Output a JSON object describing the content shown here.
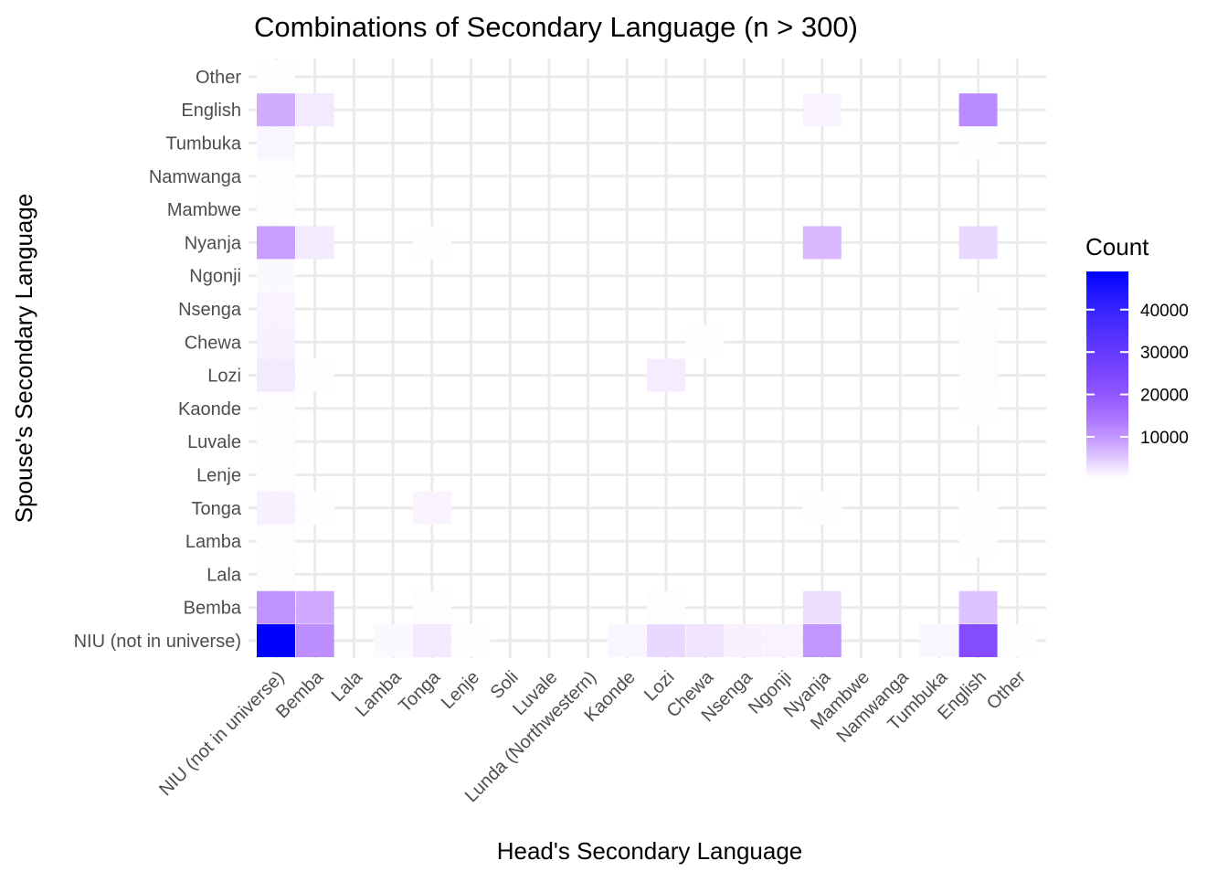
{
  "chart_data": {
    "type": "heatmap",
    "title": "Combinations of Secondary Language (n > 300)",
    "xlabel": "Head's Secondary Language",
    "ylabel": "Spouse's Secondary Language",
    "x_categories": [
      "NIU (not in universe)",
      "Bemba",
      "Lala",
      "Lamba",
      "Tonga",
      "Lenje",
      "Soli",
      "Luvale",
      "Lunda (Northwestern)",
      "Kaonde",
      "Lozi",
      "Chewa",
      "Nsenga",
      "Ngonji",
      "Nyanja",
      "Mambwe",
      "Namwanga",
      "Tumbuka",
      "English",
      "Other"
    ],
    "y_categories": [
      "NIU (not in universe)",
      "Bemba",
      "Lala",
      "Lamba",
      "Tonga",
      "Lenje",
      "Luvale",
      "Kaonde",
      "Lozi",
      "Chewa",
      "Nsenga",
      "Ngonji",
      "Nyanja",
      "Mambwe",
      "Namwanga",
      "Tumbuka",
      "English",
      "Other"
    ],
    "cells": [
      {
        "x": "NIU (not in universe)",
        "y": "NIU (not in universe)",
        "value": 49000
      },
      {
        "x": "Bemba",
        "y": "NIU (not in universe)",
        "value": 11000
      },
      {
        "x": "Lamba",
        "y": "NIU (not in universe)",
        "value": 800
      },
      {
        "x": "Tonga",
        "y": "NIU (not in universe)",
        "value": 2000
      },
      {
        "x": "Lenje",
        "y": "NIU (not in universe)",
        "value": 400
      },
      {
        "x": "Kaonde",
        "y": "NIU (not in universe)",
        "value": 1000
      },
      {
        "x": "Lozi",
        "y": "NIU (not in universe)",
        "value": 3500
      },
      {
        "x": "Chewa",
        "y": "NIU (not in universe)",
        "value": 2500
      },
      {
        "x": "Nsenga",
        "y": "NIU (not in universe)",
        "value": 1500
      },
      {
        "x": "Ngonji",
        "y": "NIU (not in universe)",
        "value": 1200
      },
      {
        "x": "Nyanja",
        "y": "NIU (not in universe)",
        "value": 10000
      },
      {
        "x": "Tumbuka",
        "y": "NIU (not in universe)",
        "value": 1000
      },
      {
        "x": "English",
        "y": "NIU (not in universe)",
        "value": 23000
      },
      {
        "x": "Other",
        "y": "NIU (not in universe)",
        "value": 400
      },
      {
        "x": "NIU (not in universe)",
        "y": "Bemba",
        "value": 10500
      },
      {
        "x": "Bemba",
        "y": "Bemba",
        "value": 8000
      },
      {
        "x": "Tonga",
        "y": "Bemba",
        "value": 500
      },
      {
        "x": "Lozi",
        "y": "Bemba",
        "value": 500
      },
      {
        "x": "Nyanja",
        "y": "Bemba",
        "value": 3000
      },
      {
        "x": "English",
        "y": "Bemba",
        "value": 5500
      },
      {
        "x": "NIU (not in universe)",
        "y": "Lala",
        "value": 500
      },
      {
        "x": "NIU (not in universe)",
        "y": "Lamba",
        "value": 500
      },
      {
        "x": "English",
        "y": "Lamba",
        "value": 400
      },
      {
        "x": "NIU (not in universe)",
        "y": "Tonga",
        "value": 1500
      },
      {
        "x": "Bemba",
        "y": "Tonga",
        "value": 400
      },
      {
        "x": "Tonga",
        "y": "Tonga",
        "value": 1200
      },
      {
        "x": "Nyanja",
        "y": "Tonga",
        "value": 400
      },
      {
        "x": "English",
        "y": "Tonga",
        "value": 400
      },
      {
        "x": "NIU (not in universe)",
        "y": "Lenje",
        "value": 500
      },
      {
        "x": "NIU (not in universe)",
        "y": "Luvale",
        "value": 500
      },
      {
        "x": "NIU (not in universe)",
        "y": "Kaonde",
        "value": 500
      },
      {
        "x": "English",
        "y": "Kaonde",
        "value": 400
      },
      {
        "x": "NIU (not in universe)",
        "y": "Lozi",
        "value": 2000
      },
      {
        "x": "Bemba",
        "y": "Lozi",
        "value": 400
      },
      {
        "x": "Lozi",
        "y": "Lozi",
        "value": 1800
      },
      {
        "x": "English",
        "y": "Lozi",
        "value": 500
      },
      {
        "x": "NIU (not in universe)",
        "y": "Chewa",
        "value": 1500
      },
      {
        "x": "Chewa",
        "y": "Chewa",
        "value": 500
      },
      {
        "x": "English",
        "y": "Chewa",
        "value": 500
      },
      {
        "x": "NIU (not in universe)",
        "y": "Nsenga",
        "value": 1200
      },
      {
        "x": "English",
        "y": "Nsenga",
        "value": 400
      },
      {
        "x": "NIU (not in universe)",
        "y": "Ngonji",
        "value": 800
      },
      {
        "x": "NIU (not in universe)",
        "y": "Nyanja",
        "value": 9000
      },
      {
        "x": "Bemba",
        "y": "Nyanja",
        "value": 2000
      },
      {
        "x": "Tonga",
        "y": "Nyanja",
        "value": 400
      },
      {
        "x": "Nyanja",
        "y": "Nyanja",
        "value": 6500
      },
      {
        "x": "English",
        "y": "Nyanja",
        "value": 3500
      },
      {
        "x": "NIU (not in universe)",
        "y": "Mambwe",
        "value": 500
      },
      {
        "x": "NIU (not in universe)",
        "y": "Namwanga",
        "value": 500
      },
      {
        "x": "NIU (not in universe)",
        "y": "Tumbuka",
        "value": 1000
      },
      {
        "x": "English",
        "y": "Tumbuka",
        "value": 400
      },
      {
        "x": "NIU (not in universe)",
        "y": "English",
        "value": 7500
      },
      {
        "x": "Bemba",
        "y": "English",
        "value": 2000
      },
      {
        "x": "Nyanja",
        "y": "English",
        "value": 1200
      },
      {
        "x": "English",
        "y": "English",
        "value": 11500
      },
      {
        "x": "NIU (not in universe)",
        "y": "Other",
        "value": 400
      }
    ],
    "color_scale": {
      "low": "#ffffff",
      "high": "#0000ff",
      "min": 300,
      "max": 49000
    },
    "legend": {
      "title": "Count",
      "ticks": [
        10000,
        20000,
        30000,
        40000
      ],
      "tick_labels": [
        "10000",
        "20000",
        "30000",
        "40000"
      ],
      "placement": "right"
    },
    "grid": true
  }
}
